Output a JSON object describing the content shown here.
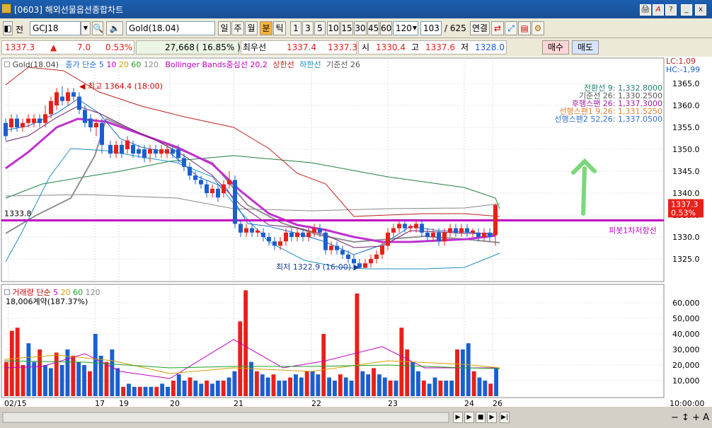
{
  "window": {
    "title": "[0603] 해외선물옵션종합차트",
    "buttons": [
      "🖨",
      "A",
      "?",
      "_",
      "x"
    ]
  },
  "toolbar": {
    "mode_label": "전",
    "symbol_code": "GCJ18",
    "symbol_name": "Gold(18.04)",
    "periods": [
      "일",
      "주",
      "월",
      "분",
      "틱"
    ],
    "active_period": "분",
    "intervals": [
      "1",
      "3",
      "5",
      "10",
      "15",
      "30",
      "45",
      "60"
    ],
    "interval_value": "120",
    "count_value": "103",
    "count_total": "/ 625",
    "link_label": "연결"
  },
  "quote": {
    "price": "1337.3",
    "change_arrow": "▲",
    "change": "7.0",
    "change_pct": "0.53%",
    "volume": "27,668",
    "volume_pct": "( 16.85% )",
    "best_label": "최우선",
    "best_ask": "1337.4",
    "best_bid": "1337.3",
    "open_label": "시",
    "open": "1330.4",
    "high_label": "고",
    "high": "1337.6",
    "low_label": "저",
    "low": "1328.0",
    "buy_label": "매수",
    "sell_label": "매도"
  },
  "price_panel": {
    "legend": {
      "symbol": "Gold(18.04)",
      "ma_label": "종가 단순",
      "ma_periods": [
        "5",
        "10",
        "20",
        "60",
        "120"
      ],
      "bb_label": "Bollinger Bands중심선 20,2",
      "bb_upper": "상한선",
      "bb_lower": "하한선",
      "base_label": "기준선 26"
    },
    "ichimoku_legend": [
      "전환선 9: 1,332.8000",
      "기준선 26: 1,330.2500",
      "후행스팬 26: 1,337.3000",
      "선행스팬1 9,26: 1,331.5250",
      "선행스팬2 52,26: 1,337.0500"
    ],
    "lc": "LC:1,09",
    "hc": "HC:-1,99",
    "y_ticks": [
      "1365.0",
      "1360.0",
      "1355.0",
      "1350.0",
      "1345.0",
      "1340.0",
      "1335.0",
      "1330.0",
      "1325.0"
    ],
    "high_marker": "최고 1364.4 (18:00)",
    "low_marker": "최저 1322.9 (16:00)",
    "pivot_value": "1333.8",
    "pivot_label": "피봇1차저항선",
    "last_price_tag": "1337.3",
    "last_pct_tag": "0.53%"
  },
  "volume_panel": {
    "legend_label": "거래량 단순",
    "ma_periods": [
      "5",
      "20",
      "60",
      "120"
    ],
    "contracts": "18,006계약(187.37%)",
    "y_ticks": [
      "60,000",
      "50,000",
      "40,000",
      "30,000",
      "20,000",
      "10,000"
    ]
  },
  "x_axis": {
    "labels": [
      "02/15",
      "17",
      "19",
      "20",
      "21",
      "22",
      "23",
      "24",
      "26"
    ],
    "time": "10:00:00"
  },
  "colors": {
    "up": "#e8201a",
    "down": "#1a5fd0",
    "pivot": "#c000c0",
    "ma20": "#c030d0",
    "bb": "#c02020"
  }
}
